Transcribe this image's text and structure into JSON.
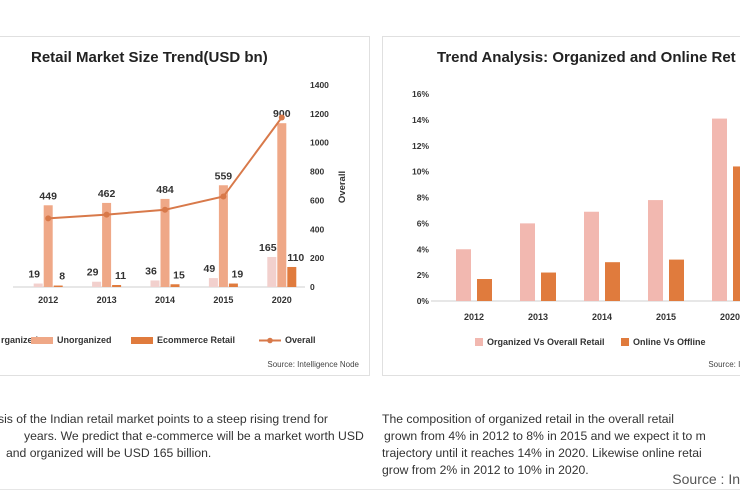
{
  "colors": {
    "unorganized": "#efa887",
    "organized": "#f2d0cd",
    "ecommerce": "#e07b3d",
    "overall": "#d8794a",
    "org_vs_overall": "#f2b8b0",
    "online_vs_offline": "#e07b3d",
    "grid": "#e8e8e8"
  },
  "left_panel": {
    "source": "Source: Intelligence Node"
  },
  "right_panel": {
    "source": "Source: Int"
  },
  "paragraphs": {
    "left": [
      "sis of the Indian retail market points to a steep rising trend for",
      "years. We predict that e-commerce will be a market worth USD",
      "and organized will be USD 165 billion."
    ],
    "right": [
      "The composition of organized retail in the overall retail",
      "grown from 4% in 2012 to 8% in 2015 and we expect it to m",
      "trajectory until it reaches 14% in 2020. Likewise online retai",
      "grow from 2% in 2012 to 10% in 2020."
    ]
  },
  "footer": {
    "source": "Source : In"
  },
  "chart_data": [
    {
      "type": "bar",
      "title": "Retail Market Size Trend(USD bn)",
      "categories": [
        "2012",
        "2013",
        "2014",
        "2015",
        "2020"
      ],
      "series": [
        {
          "name": "Organized",
          "legend_label": "rganized",
          "values": [
            19,
            29,
            36,
            49,
            165
          ],
          "labels": [
            "19",
            "29",
            "36",
            "49",
            "165"
          ]
        },
        {
          "name": "Unorganized",
          "legend_label": "Unorganized",
          "values": [
            449,
            462,
            484,
            559,
            900
          ],
          "labels": [
            "449",
            "462",
            "484",
            "559",
            "900"
          ]
        },
        {
          "name": "Ecommerce Retail",
          "legend_label": "Ecommerce Retail",
          "values": [
            8,
            11,
            15,
            19,
            110
          ],
          "labels": [
            "8",
            "11",
            "15",
            "19",
            "110"
          ]
        },
        {
          "name": "Overall",
          "legend_label": "Overall",
          "type": "line",
          "axis": "right",
          "values": [
            476,
            502,
            535,
            627,
            1175
          ]
        }
      ],
      "ylim": [
        0,
        1000
      ],
      "y2lim": [
        0,
        1400
      ],
      "y2ticks": [
        "0",
        "200",
        "400",
        "600",
        "800",
        "1000",
        "1200",
        "1400"
      ],
      "y2label": "Overall",
      "grid": false,
      "legend": "bottom"
    },
    {
      "type": "bar",
      "title": "Trend Analysis: Organized and Online Ret",
      "categories": [
        "2012",
        "2013",
        "2014",
        "2015",
        "2020"
      ],
      "series": [
        {
          "name": "Organized Vs Overall Retail",
          "legend_label": "Organized Vs Overall Retail",
          "values": [
            4.0,
            6.0,
            6.9,
            7.8,
            14.1
          ]
        },
        {
          "name": "Online Vs Offline",
          "legend_label": "Online Vs Offline",
          "values": [
            1.7,
            2.2,
            3.0,
            3.2,
            10.4
          ]
        }
      ],
      "yticks": [
        "0%",
        "2%",
        "4%",
        "6%",
        "8%",
        "10%",
        "12%",
        "14%",
        "16%"
      ],
      "ylim": [
        0,
        16
      ],
      "grid": false,
      "legend": "bottom"
    }
  ]
}
